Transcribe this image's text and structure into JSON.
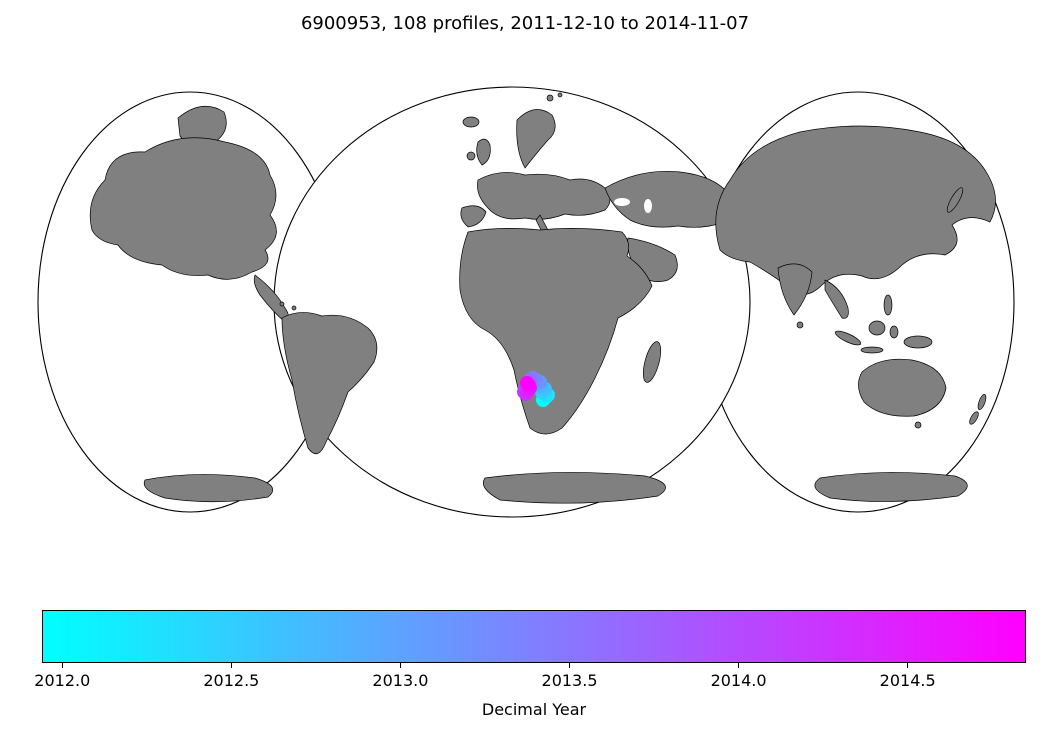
{
  "title": "6900953, 108 profiles, 2011-12-10 to 2014-11-07",
  "colors": {
    "land": "#808080",
    "outline": "#000000",
    "cmap_start": "#00ffff",
    "cmap_end": "#ff00ff",
    "background": "#ffffff"
  },
  "chart_data": {
    "type": "scatter",
    "title": "6900953, 108 profiles, 2011-12-10 to 2014-11-07",
    "float_id": "6900953",
    "n_profiles": 108,
    "date_range": [
      "2011-12-10",
      "2014-11-07"
    ],
    "projection": "interrupted world map (three lobes), gray land on white ocean",
    "colorbar": {
      "label": "Decimal Year",
      "orientation": "horizontal",
      "colormap": "cool (cyan to magenta)",
      "min": 2011.94,
      "max": 2014.85,
      "ticks": [
        {
          "value": 2012.0,
          "label": "2012.0"
        },
        {
          "value": 2012.5,
          "label": "2012.5"
        },
        {
          "value": 2013.0,
          "label": "2013.0"
        },
        {
          "value": 2013.5,
          "label": "2013.5"
        },
        {
          "value": 2014.0,
          "label": "2014.0"
        },
        {
          "value": 2014.5,
          "label": "2014.5"
        }
      ]
    },
    "points_note": "Profile positions form a small cluster in the SE Atlantic off the southwest coast of South Africa; values estimated from figure, colored by decimal year",
    "points": [
      {
        "lon": 11.6,
        "lat": -36.5,
        "year": 2011.94
      },
      {
        "lon": 11.9,
        "lat": -36.2,
        "year": 2012.05
      },
      {
        "lon": 12.1,
        "lat": -36.0,
        "year": 2012.2
      },
      {
        "lon": 11.8,
        "lat": -35.9,
        "year": 2012.35
      },
      {
        "lon": 11.5,
        "lat": -35.7,
        "year": 2012.5
      },
      {
        "lon": 11.8,
        "lat": -35.4,
        "year": 2012.65
      },
      {
        "lon": 11.4,
        "lat": -35.1,
        "year": 2012.8
      },
      {
        "lon": 11.1,
        "lat": -34.9,
        "year": 2012.95
      },
      {
        "lon": 11.3,
        "lat": -34.7,
        "year": 2013.1
      },
      {
        "lon": 10.9,
        "lat": -34.5,
        "year": 2013.25
      },
      {
        "lon": 10.6,
        "lat": -34.3,
        "year": 2013.4
      },
      {
        "lon": 10.3,
        "lat": -34.5,
        "year": 2013.55
      },
      {
        "lon": 10.1,
        "lat": -34.8,
        "year": 2013.7
      },
      {
        "lon": 9.9,
        "lat": -35.1,
        "year": 2013.85
      },
      {
        "lon": 9.8,
        "lat": -35.4,
        "year": 2014.0
      },
      {
        "lon": 9.7,
        "lat": -35.7,
        "year": 2014.15
      },
      {
        "lon": 9.9,
        "lat": -35.9,
        "year": 2014.3
      },
      {
        "lon": 10.1,
        "lat": -35.6,
        "year": 2014.45
      },
      {
        "lon": 10.3,
        "lat": -35.3,
        "year": 2014.6
      },
      {
        "lon": 10.2,
        "lat": -35.0,
        "year": 2014.75
      },
      {
        "lon": 10.0,
        "lat": -34.8,
        "year": 2014.85
      }
    ]
  }
}
